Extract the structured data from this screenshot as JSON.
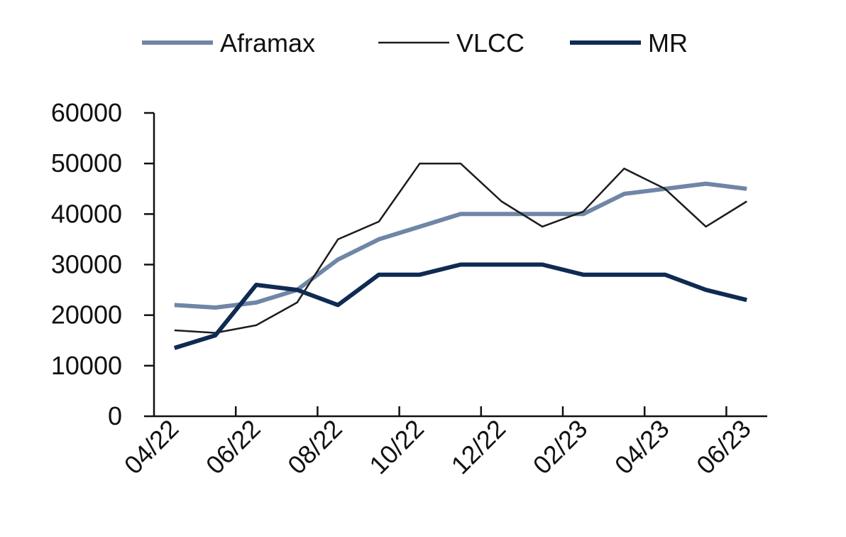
{
  "chart_data": {
    "type": "line",
    "title": "",
    "xlabel": "",
    "ylabel": "",
    "ylim": [
      0,
      60000
    ],
    "yticks": [
      "0",
      "10000",
      "20000",
      "30000",
      "40000",
      "50000",
      "60000"
    ],
    "x": [
      "04/22",
      "05/22",
      "06/22",
      "07/22",
      "08/22",
      "09/22",
      "10/22",
      "11/22",
      "12/22",
      "01/23",
      "02/23",
      "03/23",
      "04/23",
      "05/23",
      "06/23"
    ],
    "xtick_labels": [
      "04/22",
      "06/22",
      "08/22",
      "10/22",
      "12/22",
      "02/23",
      "04/23",
      "06/23"
    ],
    "legend_position": "top",
    "grid": false,
    "series": [
      {
        "name": "Aframax",
        "color": "#6f86a6",
        "width": 6,
        "values": [
          22000,
          21500,
          22500,
          25000,
          31000,
          35000,
          37500,
          40000,
          40000,
          40000,
          40000,
          44000,
          45000,
          46000,
          45000
        ]
      },
      {
        "name": "VLCC",
        "color": "#1c1c1c",
        "width": 2.5,
        "values": [
          17000,
          16500,
          18000,
          22500,
          35000,
          38500,
          50000,
          50000,
          42500,
          37500,
          40500,
          49000,
          45000,
          37500,
          42500
        ]
      },
      {
        "name": "MR",
        "color": "#0f2b53",
        "width": 6,
        "values": [
          13500,
          16000,
          26000,
          25000,
          22000,
          28000,
          28000,
          30000,
          30000,
          30000,
          28000,
          28000,
          28000,
          25000,
          23000
        ]
      }
    ]
  }
}
